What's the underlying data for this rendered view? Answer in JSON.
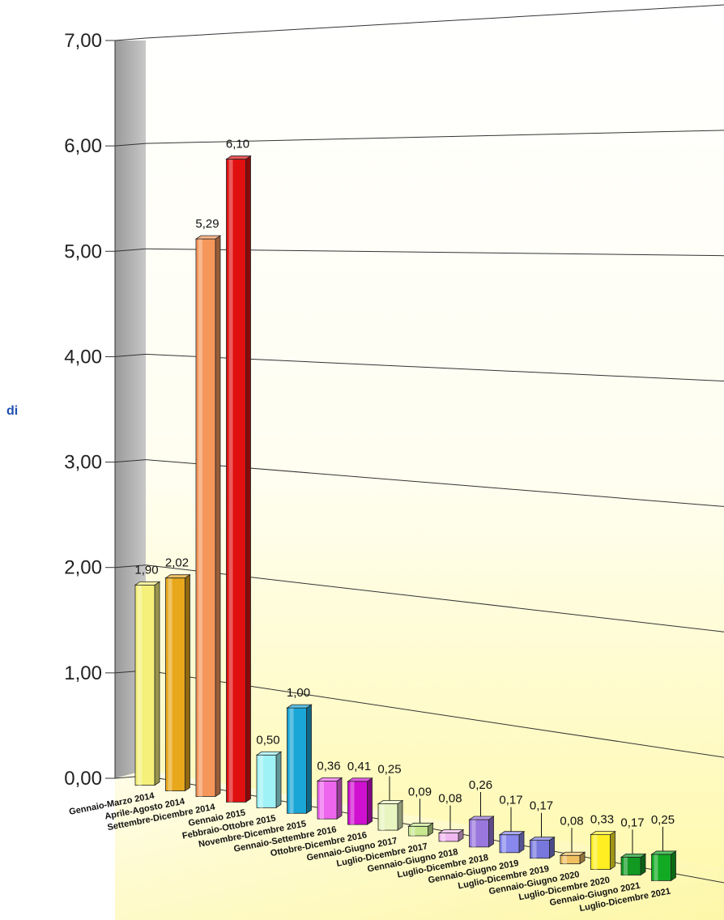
{
  "chart_data": {
    "type": "bar",
    "title": "",
    "xlabel": "",
    "ylabel": "di",
    "ylim": [
      0,
      7
    ],
    "yticks": [
      "0,00",
      "1,00",
      "2,00",
      "3,00",
      "4,00",
      "5,00",
      "6,00",
      "7,00"
    ],
    "grid": true,
    "legend": "none",
    "categories": [
      "Gennaio-Marzo 2014",
      "Aprile-Agosto 2014",
      "Settembre-Dicembre 2014",
      "Gennaio 2015",
      "Febbraio-Ottobre 2015",
      "Novembre-Dicembre 2015",
      "Gennaio-Settembre 2016",
      "Ottobre-Dicembre 2016",
      "Gennaio-Giugno 2017",
      "Luglio-Dicembre 2017",
      "Gennaio-Giugno 2018",
      "Luglio-Dicembre 2018",
      "Gennaio-Giugno 2019",
      "Luglio-Dicembre 2019",
      "Gennaio-Giugno 2020",
      "Luglio-Dicembre 2020",
      "Gennaio-Giugno 2021",
      "Luglio-Dicembre 2021"
    ],
    "values": [
      1.9,
      2.02,
      5.29,
      6.1,
      0.5,
      1.0,
      0.36,
      0.41,
      0.25,
      0.09,
      0.08,
      0.26,
      0.17,
      0.17,
      0.08,
      0.33,
      0.17,
      0.25
    ],
    "value_labels": [
      "1,90",
      "2,02",
      "5,29",
      "6,10",
      "0,50",
      "1,00",
      "0,36",
      "0,41",
      "0,25",
      "0,09",
      "0,08",
      "0,26",
      "0,17",
      "0,17",
      "0,08",
      "0,33",
      "0,17",
      "0,25"
    ],
    "colors": [
      "#f5f07a",
      "#e8a81c",
      "#f5965a",
      "#e01010",
      "#9ff2f5",
      "#1aa6d6",
      "#ee66ee",
      "#d010d0",
      "#e8f5c0",
      "#c8e890",
      "#f0b8f0",
      "#9977dd",
      "#8888ee",
      "#7777dd",
      "#f0c060",
      "#ffee22",
      "#119922",
      "#11aa22"
    ]
  }
}
